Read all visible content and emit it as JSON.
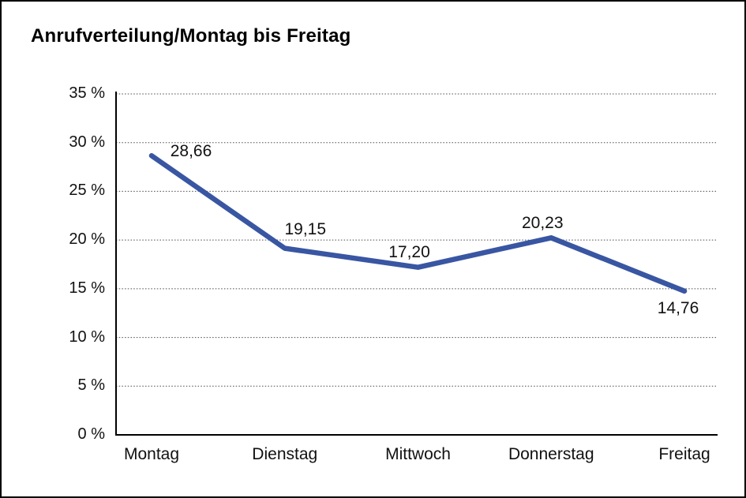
{
  "window": {
    "background_color": "#ffffff",
    "border_color": "#000000"
  },
  "chart_data": {
    "type": "line",
    "title": "Anrufverteilung/Montag bis Freitag",
    "categories": [
      "Montag",
      "Dienstag",
      "Mittwoch",
      "Donnerstag",
      "Freitag"
    ],
    "series": [
      {
        "name": "Anrufverteilung",
        "values": [
          28.66,
          19.15,
          17.2,
          20.23,
          14.76
        ],
        "data_labels": [
          "28,66",
          "19,15",
          "17,20",
          "20,23",
          "14,76"
        ]
      }
    ],
    "xlabel": "",
    "ylabel": "",
    "ylim": [
      0,
      35
    ],
    "y_tick_values": [
      0,
      5,
      10,
      15,
      20,
      25,
      30,
      35
    ],
    "y_tick_labels": [
      "0 %",
      "5 %",
      "10 %",
      "15 %",
      "20 %",
      "25 %",
      "30 %",
      "35 %"
    ],
    "grid": "horizontal-dotted",
    "legend": "none",
    "line_color": "#3956A3",
    "axis_color": "#000000",
    "gridline_color": "#4a4a4a",
    "label_color": "#111111"
  }
}
